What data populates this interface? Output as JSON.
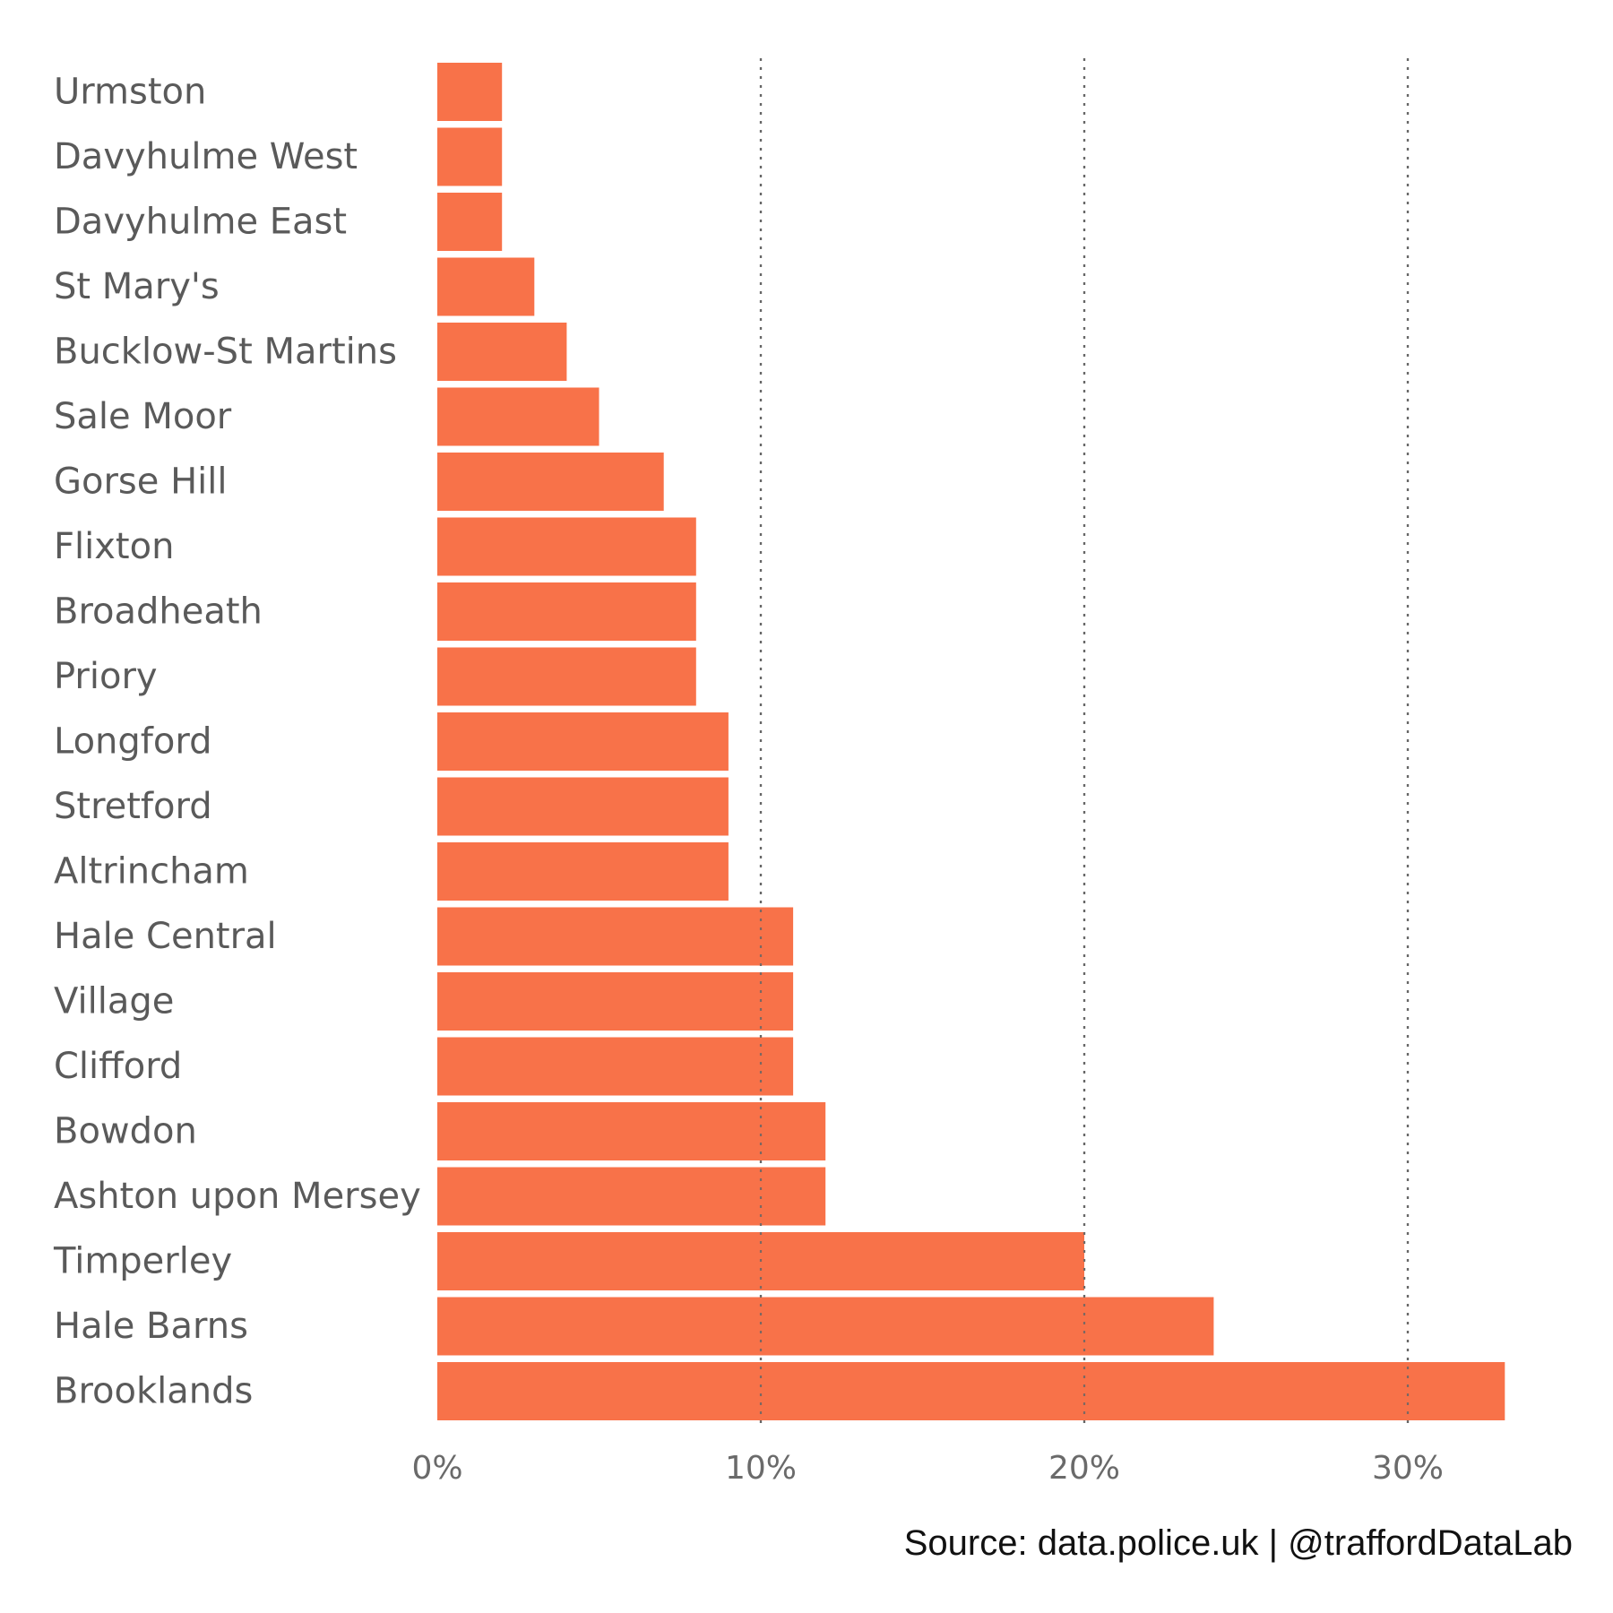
{
  "chart_data": {
    "type": "bar",
    "orientation": "horizontal",
    "categories": [
      "Urmston",
      "Davyhulme West",
      "Davyhulme East",
      "St Mary's",
      "Bucklow-St Martins",
      "Sale Moor",
      "Gorse Hill",
      "Flixton",
      "Broadheath",
      "Priory",
      "Longford",
      "Stretford",
      "Altrincham",
      "Hale Central",
      "Village",
      "Clifford",
      "Bowdon",
      "Ashton upon Mersey",
      "Timperley",
      "Hale Barns",
      "Brooklands"
    ],
    "values": [
      2,
      2,
      2,
      3,
      4,
      5,
      7,
      8,
      8,
      8,
      9,
      9,
      9,
      11,
      11,
      11,
      12,
      12,
      20,
      24,
      33
    ],
    "xlim": [
      0,
      33
    ],
    "x_ticks": [
      0,
      10,
      20,
      30
    ],
    "x_tick_labels": [
      "0%",
      "10%",
      "20%",
      "30%"
    ],
    "grid": "vertical dotted",
    "bar_color": "#f87249",
    "title": "",
    "xlabel": "",
    "ylabel": ""
  },
  "caption": {
    "text": "Source: data.police.uk  |  @traffordDataLab"
  }
}
